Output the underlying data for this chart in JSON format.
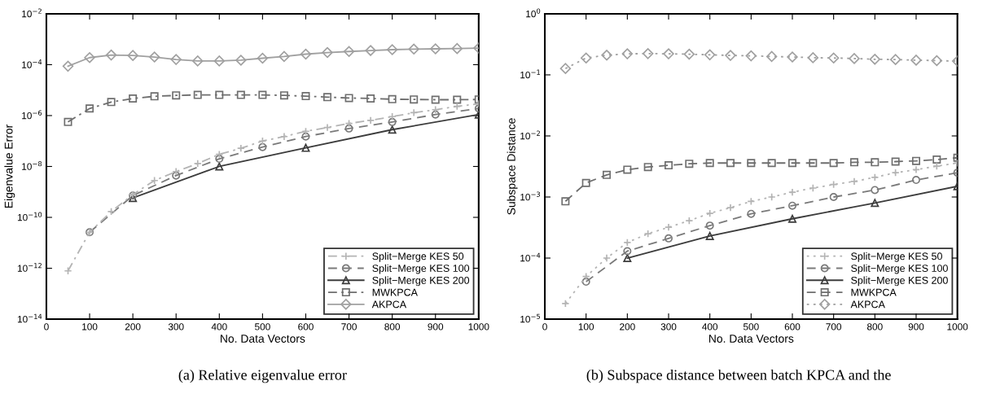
{
  "chart_data": [
    {
      "type": "line",
      "xlabel": "No. Data Vectors",
      "ylabel": "Eigenvalue Error",
      "log": "y",
      "grid": false,
      "legend": "lower right",
      "xlim": [
        0,
        1000
      ],
      "xticks": [
        0,
        100,
        200,
        300,
        400,
        500,
        600,
        700,
        800,
        900,
        1000
      ],
      "ylim": [
        1e-14,
        0.01
      ],
      "yticks": [
        {
          "value": 1e-14,
          "label": "10$^{−14}$"
        },
        {
          "value": 1e-12,
          "label": "10$^{−12}$"
        },
        {
          "value": 1e-10,
          "label": "10$^{−10}$"
        },
        {
          "value": 1e-08,
          "label": "10$^{−8}$"
        },
        {
          "value": 1e-06,
          "label": "10$^{−6}$"
        },
        {
          "value": 0.0001,
          "label": "10$^{−4}$"
        },
        {
          "value": 0.01,
          "label": "10$^{−2}$"
        }
      ],
      "annotations": [
        "(a) Relative eigenvalue error"
      ],
      "series": [
        {
          "name": "Split−Merge KES 50",
          "color": "#b4b4b4",
          "marker": "cross",
          "line_style": "dashdot",
          "x": [
            50,
            100,
            150,
            200,
            250,
            300,
            350,
            400,
            450,
            500,
            550,
            600,
            650,
            700,
            750,
            800,
            850,
            900,
            950,
            1000
          ],
          "values": [
            7.9e-13,
            2.6e-11,
            1.7e-10,
            7.9e-10,
            2.8e-09,
            6.3e-09,
            1.3e-08,
            3e-08,
            5.2e-08,
            1e-07,
            1.5e-07,
            2.4e-07,
            3.4e-07,
            4.9e-07,
            6.5e-07,
            9.1e-07,
            1.3e-06,
            1.7e-06,
            2.3e-06,
            2.9e-06
          ]
        },
        {
          "name": "Split−Merge KES 100",
          "color": "#7a7a7a",
          "marker": "circle",
          "line_style": "dashed",
          "x": [
            100,
            200,
            300,
            400,
            500,
            600,
            700,
            800,
            900,
            1000
          ],
          "values": [
            2.6e-11,
            7.2e-10,
            4.4e-09,
            2e-08,
            5.8e-08,
            1.5e-07,
            3.1e-07,
            5.6e-07,
            1.1e-06,
            1.9e-06
          ]
        },
        {
          "name": "Split−Merge KES 200",
          "color": "#3c3c3c",
          "marker": "triangle",
          "line_style": "solid",
          "x": [
            200,
            400,
            600,
            800,
            1000
          ],
          "values": [
            5.8e-10,
            1e-08,
            5.4e-08,
            2.8e-07,
            1.1e-06
          ]
        },
        {
          "name": "MWKPCA",
          "color": "#6e6e6e",
          "marker": "square",
          "line_style": "dashdot",
          "x": [
            50,
            100,
            150,
            200,
            250,
            300,
            350,
            400,
            450,
            500,
            550,
            600,
            650,
            700,
            750,
            800,
            850,
            900,
            950,
            1000
          ],
          "values": [
            5.6e-07,
            1.9e-06,
            3.4e-06,
            4.7e-06,
            5.7e-06,
            6.2e-06,
            6.5e-06,
            6.5e-06,
            6.5e-06,
            6.5e-06,
            6.2e-06,
            5.8e-06,
            5.3e-06,
            4.9e-06,
            4.7e-06,
            4.4e-06,
            4.3e-06,
            4.2e-06,
            4.2e-06,
            4.3e-06
          ]
        },
        {
          "name": "AKPCA",
          "color": "#a0a0a0",
          "marker": "diamond",
          "line_style": "solid",
          "x": [
            50,
            100,
            150,
            200,
            250,
            300,
            350,
            400,
            450,
            500,
            550,
            600,
            650,
            700,
            750,
            800,
            850,
            900,
            950,
            1000
          ],
          "values": [
            8.7e-05,
            0.00019,
            0.00024,
            0.00023,
            0.0002,
            0.00016,
            0.00014,
            0.00014,
            0.00015,
            0.00018,
            0.00021,
            0.00026,
            0.0003,
            0.00033,
            0.00036,
            0.00039,
            0.00041,
            0.00042,
            0.00043,
            0.00045
          ]
        }
      ]
    },
    {
      "type": "line",
      "xlabel": "No. Data Vectors",
      "ylabel": "Subspace Distance",
      "log": "y",
      "grid": false,
      "legend": "lower right",
      "xlim": [
        0,
        1000
      ],
      "xticks": [
        0,
        100,
        200,
        300,
        400,
        500,
        600,
        700,
        800,
        900,
        1000
      ],
      "ylim": [
        1e-05,
        1
      ],
      "yticks": [
        {
          "value": 1e-05,
          "label": "10$^{−5}$"
        },
        {
          "value": 0.0001,
          "label": "10$^{−4}$"
        },
        {
          "value": 0.001,
          "label": "10$^{−3}$"
        },
        {
          "value": 0.01,
          "label": "10$^{−2}$"
        },
        {
          "value": 0.1,
          "label": "10$^{−1}$"
        },
        {
          "value": 1,
          "label": "10$^{0}$"
        }
      ],
      "annotations": [
        "(b) Subspace distance between batch KPCA and the"
      ],
      "series": [
        {
          "name": "Split−Merge KES 50",
          "color": "#b4b4b4",
          "marker": "cross",
          "line_style": "dotted",
          "x": [
            50,
            100,
            150,
            200,
            250,
            300,
            350,
            400,
            450,
            500,
            550,
            600,
            650,
            700,
            750,
            800,
            850,
            900,
            950,
            1000
          ],
          "values": [
            1.8e-05,
            5e-05,
            0.0001,
            0.00018,
            0.00025,
            0.00032,
            0.00041,
            0.00054,
            0.00067,
            0.00085,
            0.001,
            0.0012,
            0.0014,
            0.0016,
            0.0018,
            0.0021,
            0.0025,
            0.0028,
            0.0032,
            0.0036
          ]
        },
        {
          "name": "Split−Merge KES 100",
          "color": "#7a7a7a",
          "marker": "circle",
          "line_style": "dashed",
          "x": [
            100,
            200,
            300,
            400,
            500,
            600,
            700,
            800,
            900,
            1000
          ],
          "values": [
            4.1e-05,
            0.00013,
            0.00021,
            0.00034,
            0.00053,
            0.00072,
            0.001,
            0.0013,
            0.0019,
            0.0025
          ]
        },
        {
          "name": "Split−Merge KES 200",
          "color": "#3c3c3c",
          "marker": "triangle",
          "line_style": "solid",
          "x": [
            200,
            400,
            600,
            800,
            1000
          ],
          "values": [
            0.0001,
            0.00023,
            0.00044,
            0.0008,
            0.0015
          ]
        },
        {
          "name": "MWKPCA",
          "color": "#6e6e6e",
          "marker": "square",
          "line_style": "dashed",
          "x": [
            50,
            100,
            150,
            200,
            250,
            300,
            350,
            400,
            450,
            500,
            550,
            600,
            650,
            700,
            750,
            800,
            850,
            900,
            950,
            1000
          ],
          "values": [
            0.00085,
            0.0017,
            0.0023,
            0.0028,
            0.0031,
            0.0033,
            0.0035,
            0.0036,
            0.0036,
            0.0036,
            0.0036,
            0.0036,
            0.0036,
            0.0036,
            0.0037,
            0.0037,
            0.0038,
            0.0039,
            0.0041,
            0.0044
          ]
        },
        {
          "name": "AKPCA",
          "color": "#a0a0a0",
          "marker": "diamond",
          "line_style": "dotted",
          "x": [
            50,
            100,
            150,
            200,
            250,
            300,
            350,
            400,
            450,
            500,
            550,
            600,
            650,
            700,
            750,
            800,
            850,
            900,
            950,
            1000
          ],
          "values": [
            0.127,
            0.189,
            0.21,
            0.221,
            0.223,
            0.221,
            0.218,
            0.213,
            0.208,
            0.205,
            0.2,
            0.196,
            0.191,
            0.189,
            0.185,
            0.18,
            0.178,
            0.174,
            0.171,
            0.168
          ]
        }
      ]
    }
  ]
}
